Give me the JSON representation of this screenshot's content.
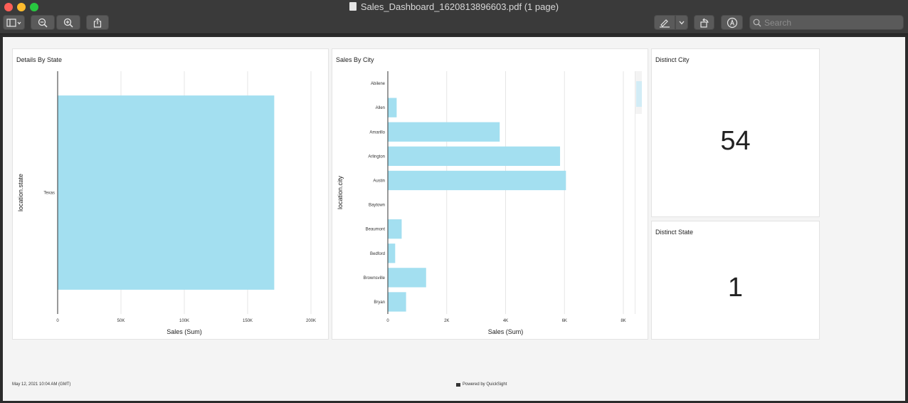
{
  "window": {
    "title": "Sales_Dashboard_1620813896603.pdf (1 page)",
    "search_placeholder": "Search"
  },
  "toolbar": {
    "icons": [
      "sidebar-icon",
      "zoom-out-icon",
      "zoom-in-icon",
      "share-icon",
      "markup-icon",
      "rotate-icon",
      "annotate-icon",
      "search-icon"
    ]
  },
  "panels": {
    "details_by_state": {
      "title": "Details By State"
    },
    "sales_by_city": {
      "title": "Sales By City"
    },
    "distinct_city": {
      "title": "Distinct City",
      "value": "54"
    },
    "distinct_state": {
      "title": "Distinct State",
      "value": "1"
    }
  },
  "footer": {
    "timestamp": "May 12, 2021 10:04 AM (GMT)",
    "powered_by": "Powered by QuickSight"
  },
  "colors": {
    "bar": "#a3dff0",
    "axis": "#333333",
    "grid": "#e5e5e5"
  },
  "chart_data": [
    {
      "type": "bar",
      "orientation": "horizontal",
      "title": "Details By State",
      "xlabel": "Sales (Sum)",
      "ylabel": "location.state",
      "categories": [
        "Texas"
      ],
      "values": [
        171000
      ],
      "xlim": [
        0,
        200000
      ],
      "xticks": [
        0,
        50000,
        100000,
        150000,
        200000
      ],
      "xtick_labels": [
        "0",
        "50K",
        "100K",
        "150K",
        "200K"
      ]
    },
    {
      "type": "bar",
      "orientation": "horizontal",
      "title": "Sales By City",
      "xlabel": "Sales (Sum)",
      "ylabel": "location.city",
      "categories": [
        "Abilene",
        "Allen",
        "Amarillo",
        "Arlington",
        "Austin",
        "Baytown",
        "Beaumont",
        "Bedford",
        "Brownsville",
        "Bryan"
      ],
      "values": [
        0,
        300,
        3800,
        5850,
        6050,
        0,
        470,
        250,
        1300,
        620
      ],
      "xlim": [
        0,
        8000
      ],
      "xticks": [
        0,
        2000,
        4000,
        6000,
        8000
      ],
      "xtick_labels": [
        "0",
        "2K",
        "4K",
        "6K",
        "8K"
      ]
    }
  ]
}
